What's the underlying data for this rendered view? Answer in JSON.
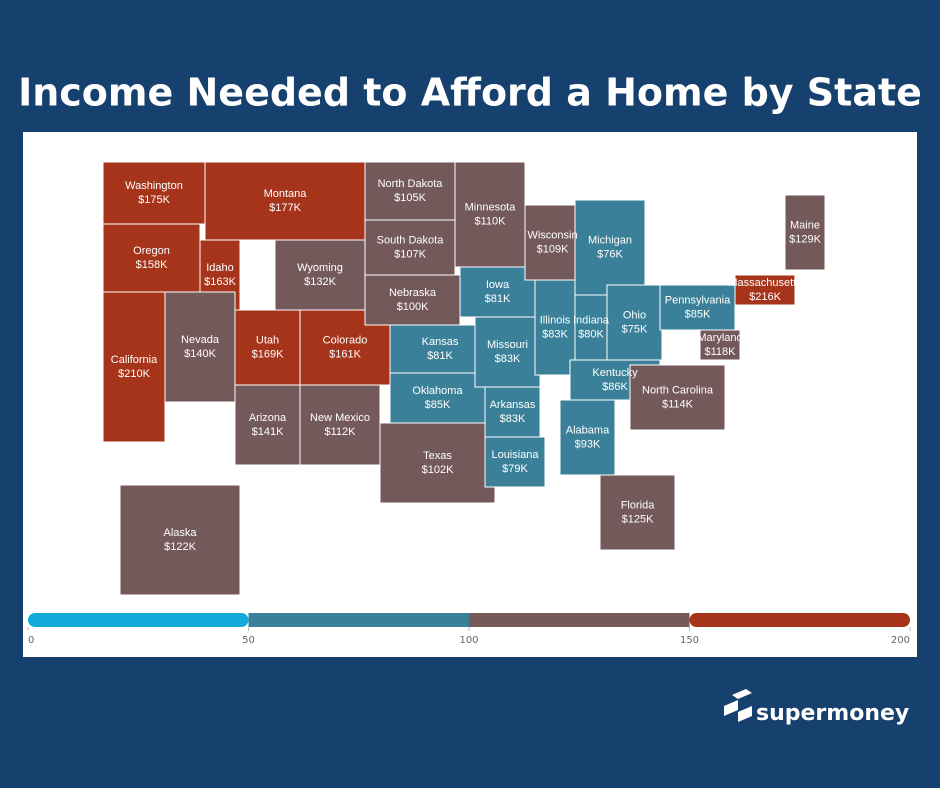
{
  "chart_data": {
    "type": "choropleth",
    "title": "Income Needed to Afford a Home by State",
    "regions": [
      "Washington",
      "Oregon",
      "California",
      "Idaho",
      "Nevada",
      "Montana",
      "Wyoming",
      "Utah",
      "Colorado",
      "Arizona",
      "New Mexico",
      "North Dakota",
      "South Dakota",
      "Nebraska",
      "Kansas",
      "Oklahoma",
      "Texas",
      "Minnesota",
      "Iowa",
      "Missouri",
      "Arkansas",
      "Louisiana",
      "Wisconsin",
      "Illinois",
      "Michigan",
      "Indiana",
      "Ohio",
      "Kentucky",
      "Alabama",
      "Pennsylvania",
      "Maryland",
      "North Carolina",
      "Florida",
      "Maine",
      "Massachusetts",
      "Alaska"
    ],
    "values": [
      175,
      158,
      210,
      163,
      140,
      177,
      132,
      169,
      161,
      141,
      112,
      105,
      107,
      100,
      81,
      85,
      102,
      110,
      81,
      83,
      83,
      79,
      109,
      83,
      76,
      80,
      75,
      86,
      93,
      85,
      118,
      114,
      125,
      129,
      216,
      122
    ],
    "value_labels": [
      "$175K",
      "$158K",
      "$210K",
      "$163K",
      "$140K",
      "$177K",
      "$132K",
      "$169K",
      "$161K",
      "$141K",
      "$112K",
      "$105K",
      "$107K",
      "$100K",
      "$81K",
      "$85K",
      "$102K",
      "$110K",
      "$81K",
      "$83K",
      "$83K",
      "$79K",
      "$109K",
      "$83K",
      "$76K",
      "$80K",
      "$75K",
      "$86K",
      "$93K",
      "$85K",
      "$118K",
      "$114K",
      "$125K",
      "$129K",
      "$216K",
      "$122K"
    ],
    "scale": {
      "ticks": [
        0,
        50,
        100,
        150,
        200
      ],
      "colors": [
        "#12aad9",
        "#3b8099",
        "#74595a",
        "#a5341a"
      ]
    }
  },
  "brand": "supermoney"
}
